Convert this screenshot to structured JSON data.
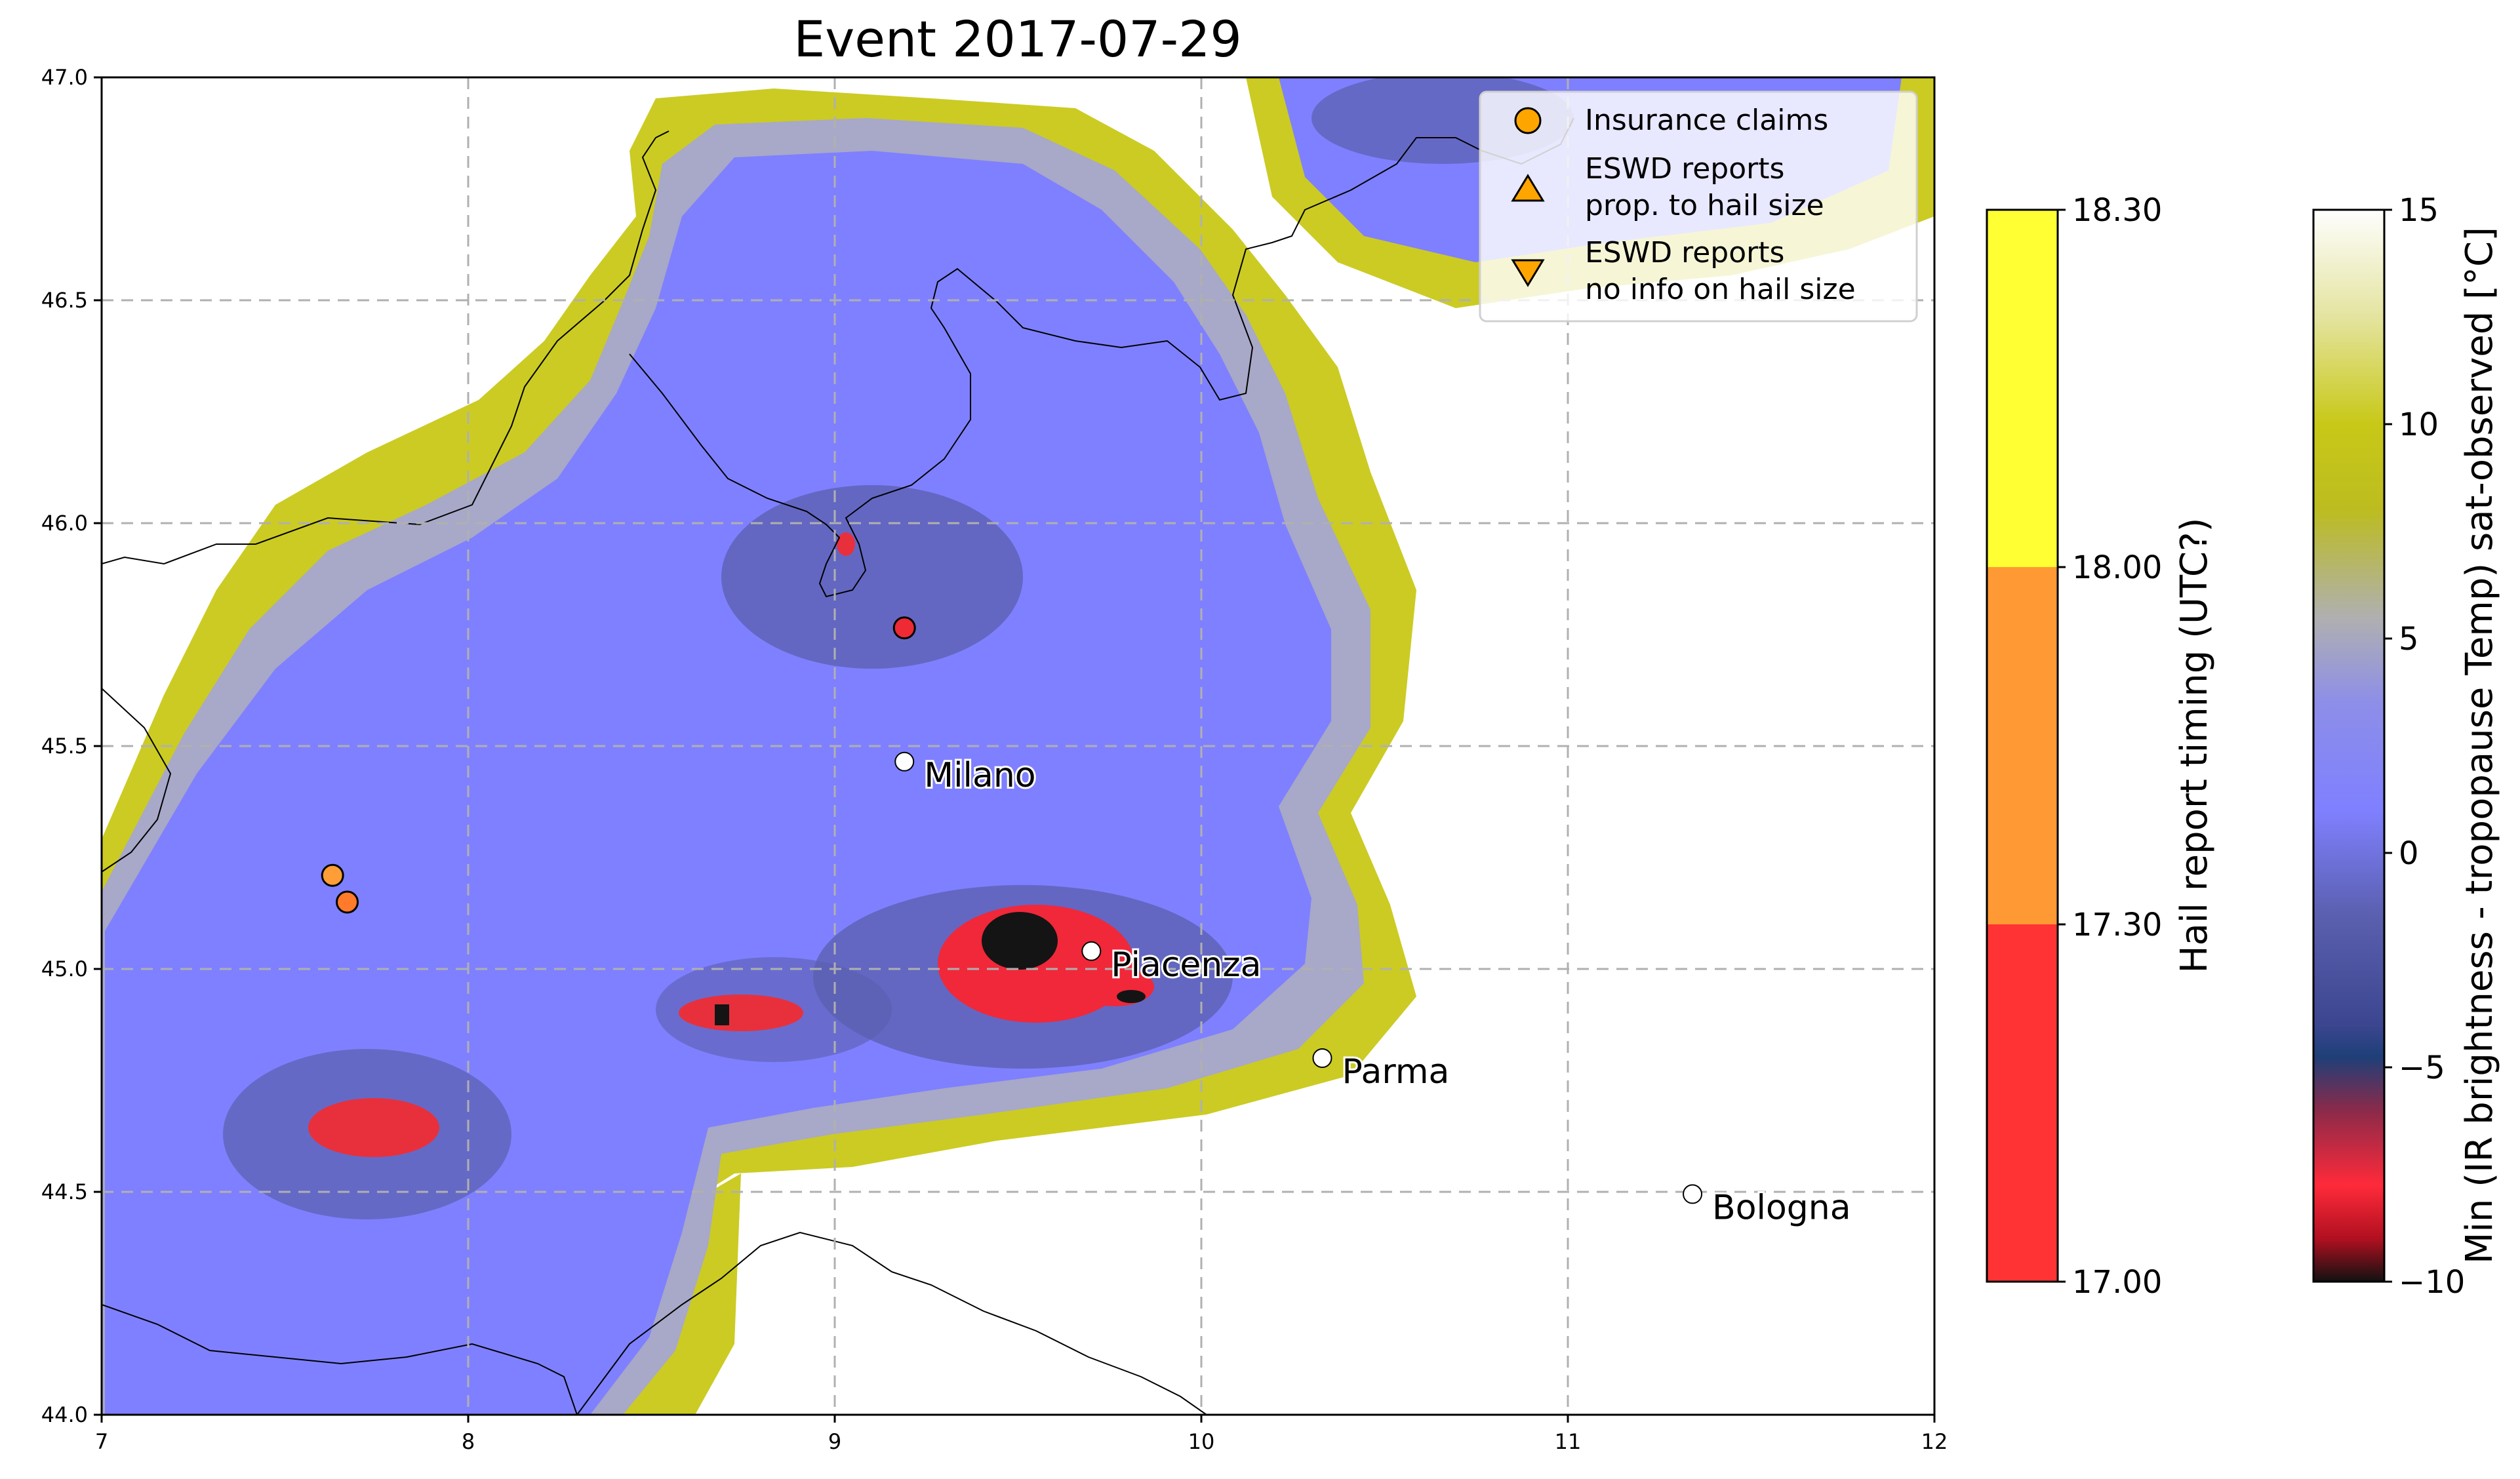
{
  "title": "Event 2017-07-29",
  "map": {
    "x_ticks": [
      "7",
      "8",
      "9",
      "10",
      "11",
      "12"
    ],
    "y_ticks": [
      "44.0",
      "44.5",
      "45.0",
      "45.5",
      "46.0",
      "46.5",
      "47.0"
    ],
    "lon_range": [
      7,
      12
    ],
    "lat_range": [
      44,
      47
    ],
    "grid": "dashed",
    "cities": [
      {
        "name": "Milano",
        "lon": 9.19,
        "lat": 45.465
      },
      {
        "name": "Piacenza",
        "lon": 9.7,
        "lat": 45.04
      },
      {
        "name": "Parma",
        "lon": 10.33,
        "lat": 44.8
      },
      {
        "name": "Bologna",
        "lon": 11.34,
        "lat": 44.495
      }
    ],
    "insurance_claims": [
      {
        "lon": 7.63,
        "lat": 45.21,
        "color": "#ff9e36"
      },
      {
        "lon": 7.67,
        "lat": 45.15,
        "color": "#ff7a2a"
      },
      {
        "lon": 9.19,
        "lat": 45.765,
        "color": "#ee2a34"
      }
    ]
  },
  "legend": {
    "position": "top-right",
    "items": [
      {
        "symbol": "circle",
        "label": "Insurance claims"
      },
      {
        "symbol": "triangle-up",
        "label": "ESWD reports\n prop. to hail size"
      },
      {
        "symbol": "triangle-down",
        "label": "ESWD reports\n no info on hail size"
      }
    ],
    "marker_color": "#ffa500"
  },
  "colorbar_timing": {
    "label": "Hail report timing (UTC?)",
    "ticks": [
      "18.30",
      "18.00",
      "17.30",
      "17.00"
    ],
    "bands": [
      "#ff3333",
      "#ff9933",
      "#ffff33"
    ]
  },
  "colorbar_temp": {
    "label": "Min (IR brightness - tropopause Temp) sat-observed [°C]",
    "ticks": [
      "15",
      "10",
      "5",
      "0",
      "−5",
      "−10"
    ],
    "range": [
      -10,
      15
    ]
  }
}
